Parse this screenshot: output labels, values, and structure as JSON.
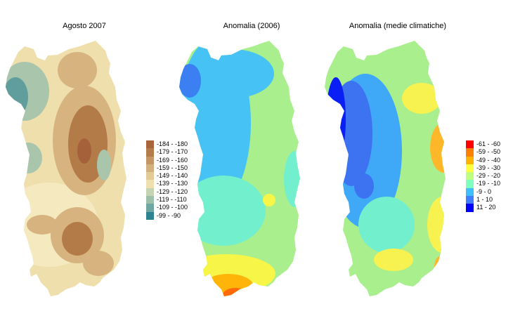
{
  "panels": [
    {
      "id": "august-2007",
      "title": "Agosto 2007",
      "legend": [
        {
          "label": "-184 - -180",
          "color": "#a9653a"
        },
        {
          "label": "-179 - -170",
          "color": "#b47c48"
        },
        {
          "label": "-169 - -160",
          "color": "#c39663"
        },
        {
          "label": "-159 - -150",
          "color": "#d3b17f"
        },
        {
          "label": "-149 - -140",
          "color": "#e3cb98"
        },
        {
          "label": "-139 - -130",
          "color": "#f0e0b0"
        },
        {
          "label": "-129 - -120",
          "color": "#c5d5b4"
        },
        {
          "label": "-119 - -110",
          "color": "#9ec0ab"
        },
        {
          "label": "-109 - -100",
          "color": "#6ea7a2"
        },
        {
          "label": "-99 - -90",
          "color": "#2f8290"
        }
      ]
    },
    {
      "id": "anomaly-2006",
      "title": "Anomalia (2006)",
      "legend": []
    },
    {
      "id": "anomaly-climatic",
      "title": "Anomalia (medie climatiche)",
      "legend": [
        {
          "label": "-61 - -60",
          "color": "#ff0000"
        },
        {
          "label": "-59 - -50",
          "color": "#ff7f00"
        },
        {
          "label": "-49 - -40",
          "color": "#ffb300"
        },
        {
          "label": "-39 - -30",
          "color": "#ffff3f"
        },
        {
          "label": "-29 - -20",
          "color": "#bfff7f"
        },
        {
          "label": "-19 - -10",
          "color": "#7fffbf"
        },
        {
          "label": "-9 - 0",
          "color": "#3fbfff"
        },
        {
          "label": "1 - 10",
          "color": "#3f7fff"
        },
        {
          "label": "11 - 20",
          "color": "#0000ff"
        }
      ]
    }
  ],
  "map_colors": {
    "august_base": "#efdfac",
    "august_light": "#f5e9c0",
    "august_mid": "#d7b47f",
    "august_brown": "#b37b47",
    "august_dark": "#a5623a",
    "august_teal": "#a9c6ad",
    "august_teal_dark": "#5f9e9c",
    "anom06_base": "#a9ef8e",
    "anom06_blue": "#46c2f4",
    "anom06_cyan": "#72f0cd",
    "anom06_deepblue": "#3b7ff2",
    "anom06_yellow": "#f6f548",
    "anom06_orange": "#ffb40a",
    "anom06_red": "#ff6a0a",
    "anomclim_base": "#a9ef8e",
    "anomclim_cyan": "#72f0cd",
    "anomclim_blue": "#3fa8f7",
    "anomclim_royal": "#3d72f0",
    "anomclim_navy": "#0a1ff5",
    "anomclim_yellow": "#f7f24f",
    "anomclim_orange": "#ffb72a"
  }
}
